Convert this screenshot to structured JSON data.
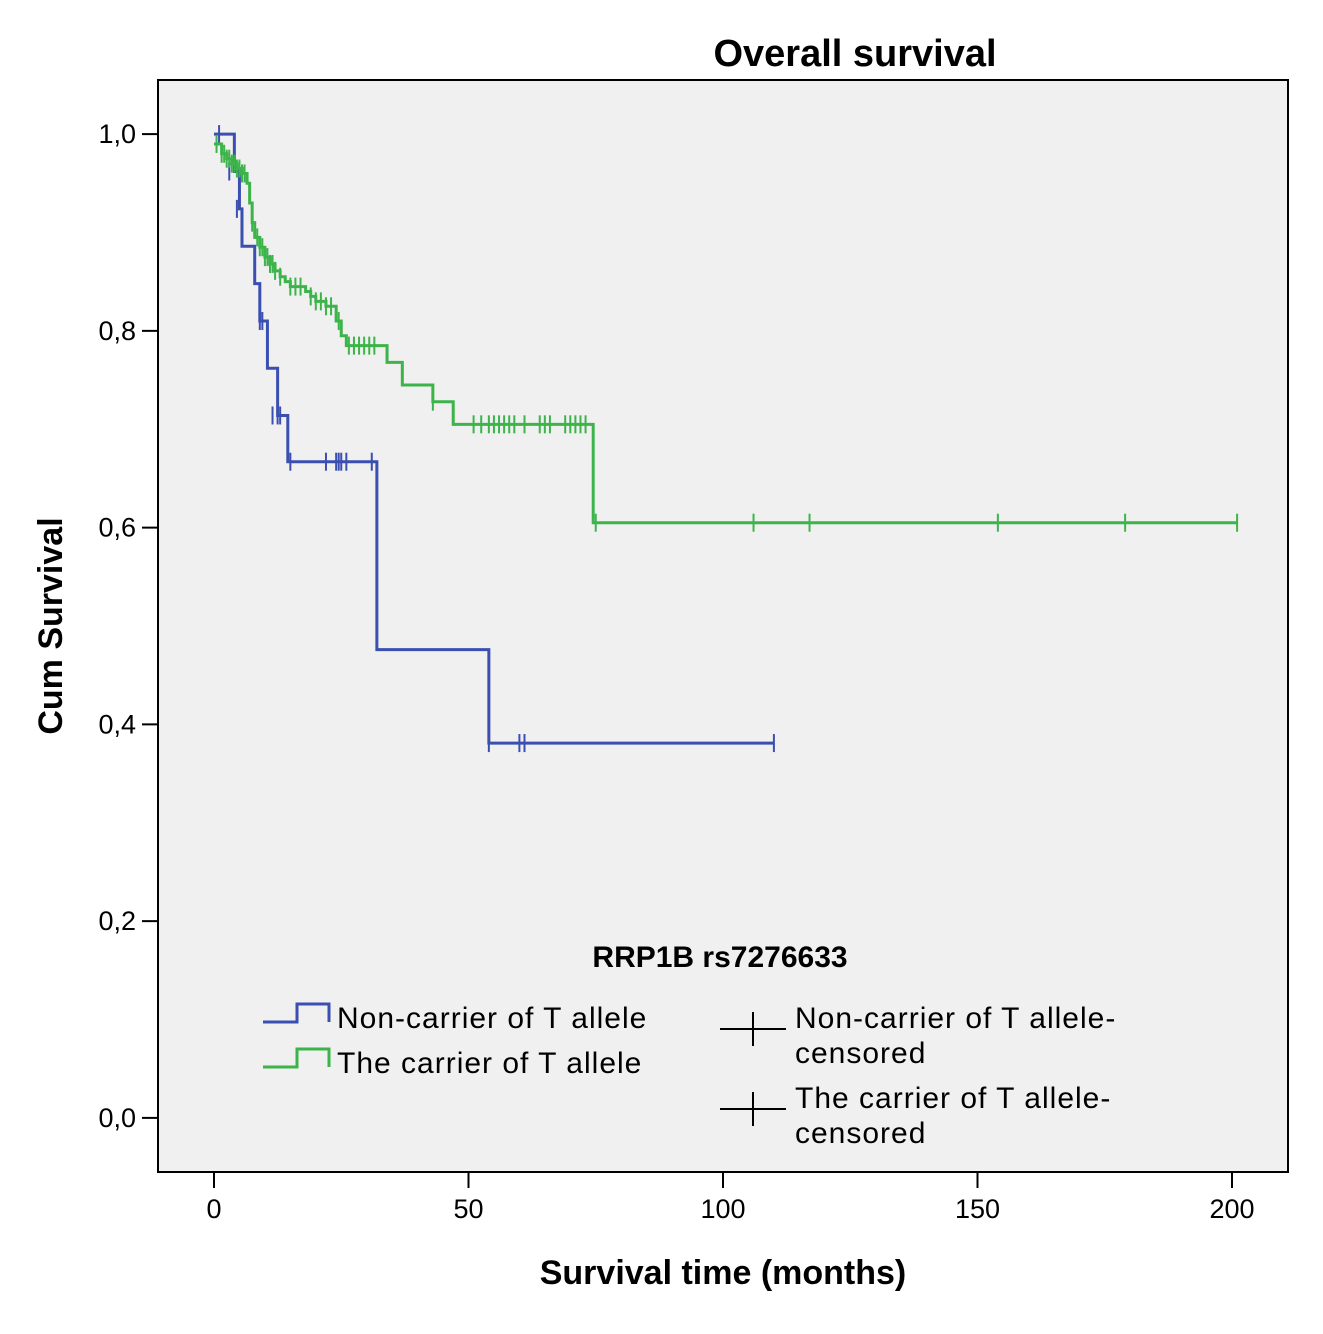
{
  "chart_data": {
    "type": "line",
    "subtype": "kaplan-meier step",
    "title": "Overall survival",
    "xlabel": "Survival time (months)",
    "ylabel": "Cum Survival",
    "xlim": [
      -11,
      211
    ],
    "ylim": [
      -0.055,
      1.055
    ],
    "xticks": [
      0,
      50,
      100,
      150,
      200
    ],
    "xtick_labels": [
      "0",
      "50",
      "100",
      "150",
      "200"
    ],
    "yticks": [
      0.0,
      0.2,
      0.4,
      0.6,
      0.8,
      1.0
    ],
    "ytick_labels": [
      "0,0",
      "0,2",
      "0,4",
      "0,6",
      "0,8",
      "1,0"
    ],
    "legend": {
      "title": "RRP1B rs7276633",
      "position": "bottom",
      "entries": [
        {
          "label": "Non-carrier of T allele",
          "kind": "line",
          "color": "#3b4fb0"
        },
        {
          "label": "The carrier of T allele",
          "kind": "line",
          "color": "#3cb44a"
        },
        {
          "label_line1": "Non-carrier of T allele-",
          "label_line2": "censored",
          "kind": "censor",
          "color": "#000000"
        },
        {
          "label_line1": "The carrier of T allele-",
          "label_line2": "censored",
          "kind": "censor",
          "color": "#000000"
        }
      ]
    },
    "series": [
      {
        "name": "Non-carrier of T allele",
        "color": "#3b4fb0",
        "steps": [
          [
            0,
            1.0
          ],
          [
            4,
            0.962
          ],
          [
            5,
            0.924
          ],
          [
            5.5,
            0.886
          ],
          [
            8,
            0.848
          ],
          [
            9,
            0.81
          ],
          [
            10.5,
            0.762
          ],
          [
            12.5,
            0.714
          ],
          [
            14.5,
            0.667
          ],
          [
            32,
            0.476
          ],
          [
            54,
            0.381
          ],
          [
            110,
            0.381
          ]
        ],
        "censored": [
          [
            1,
            1.0
          ],
          [
            3,
            0.962
          ],
          [
            4.5,
            0.924
          ],
          [
            9,
            0.81
          ],
          [
            9.5,
            0.81
          ],
          [
            11.5,
            0.714
          ],
          [
            12.5,
            0.714
          ],
          [
            13,
            0.714
          ],
          [
            15,
            0.667
          ],
          [
            22,
            0.667
          ],
          [
            24,
            0.667
          ],
          [
            24.5,
            0.667
          ],
          [
            25,
            0.667
          ],
          [
            26,
            0.667
          ],
          [
            31,
            0.667
          ],
          [
            54,
            0.381
          ],
          [
            60,
            0.381
          ],
          [
            61,
            0.381
          ],
          [
            110,
            0.381
          ]
        ]
      },
      {
        "name": "The carrier of T allele",
        "color": "#3cb44a",
        "steps": [
          [
            0,
            0.99
          ],
          [
            1.5,
            0.98
          ],
          [
            2.5,
            0.975
          ],
          [
            3.5,
            0.97
          ],
          [
            4.5,
            0.965
          ],
          [
            5.5,
            0.96
          ],
          [
            6.5,
            0.95
          ],
          [
            7,
            0.93
          ],
          [
            7.5,
            0.91
          ],
          [
            8,
            0.895
          ],
          [
            9,
            0.885
          ],
          [
            10,
            0.875
          ],
          [
            11,
            0.868
          ],
          [
            12,
            0.861
          ],
          [
            13,
            0.855
          ],
          [
            14,
            0.85
          ],
          [
            15,
            0.845
          ],
          [
            18,
            0.84
          ],
          [
            19,
            0.835
          ],
          [
            20,
            0.83
          ],
          [
            22,
            0.825
          ],
          [
            24,
            0.81
          ],
          [
            25,
            0.795
          ],
          [
            26,
            0.785
          ],
          [
            34,
            0.768
          ],
          [
            37,
            0.745
          ],
          [
            43,
            0.728
          ],
          [
            47,
            0.705
          ],
          [
            74.5,
            0.605
          ],
          [
            201,
            0.605
          ]
        ],
        "censored": [
          [
            0.5,
            0.99
          ],
          [
            1.5,
            0.98
          ],
          [
            2,
            0.98
          ],
          [
            2.5,
            0.975
          ],
          [
            3,
            0.975
          ],
          [
            3.5,
            0.97
          ],
          [
            4,
            0.97
          ],
          [
            4.5,
            0.965
          ],
          [
            5,
            0.965
          ],
          [
            5.5,
            0.96
          ],
          [
            6,
            0.96
          ],
          [
            7.5,
            0.91
          ],
          [
            8.5,
            0.895
          ],
          [
            9,
            0.885
          ],
          [
            9.5,
            0.885
          ],
          [
            10,
            0.875
          ],
          [
            10.5,
            0.875
          ],
          [
            11,
            0.868
          ],
          [
            11.5,
            0.868
          ],
          [
            12,
            0.861
          ],
          [
            13,
            0.855
          ],
          [
            15,
            0.845
          ],
          [
            16,
            0.845
          ],
          [
            17,
            0.845
          ],
          [
            19,
            0.835
          ],
          [
            20,
            0.83
          ],
          [
            21,
            0.83
          ],
          [
            22,
            0.825
          ],
          [
            23,
            0.825
          ],
          [
            24.5,
            0.81
          ],
          [
            26.5,
            0.785
          ],
          [
            27.5,
            0.785
          ],
          [
            28.5,
            0.785
          ],
          [
            29.5,
            0.785
          ],
          [
            30.5,
            0.785
          ],
          [
            31.5,
            0.785
          ],
          [
            43,
            0.728
          ],
          [
            51,
            0.705
          ],
          [
            52.5,
            0.705
          ],
          [
            54,
            0.705
          ],
          [
            55,
            0.705
          ],
          [
            56,
            0.705
          ],
          [
            57,
            0.705
          ],
          [
            58,
            0.705
          ],
          [
            59,
            0.705
          ],
          [
            61,
            0.705
          ],
          [
            64,
            0.705
          ],
          [
            65,
            0.705
          ],
          [
            66,
            0.705
          ],
          [
            69,
            0.705
          ],
          [
            70,
            0.705
          ],
          [
            71,
            0.705
          ],
          [
            72,
            0.705
          ],
          [
            73,
            0.705
          ],
          [
            75,
            0.605
          ],
          [
            106,
            0.605
          ],
          [
            117,
            0.605
          ],
          [
            154,
            0.605
          ],
          [
            179,
            0.605
          ],
          [
            201,
            0.605
          ]
        ]
      }
    ]
  }
}
